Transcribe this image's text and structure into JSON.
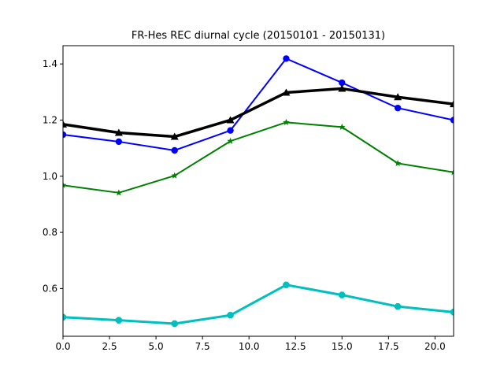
{
  "chart_data": {
    "type": "line",
    "title": "FR-Hes REC diurnal cycle (20150101 - 20150131)",
    "xlabel": "",
    "ylabel": "",
    "xlim": [
      0,
      21
    ],
    "ylim": [
      0.43,
      1.465
    ],
    "x_ticks": [
      0.0,
      2.5,
      5.0,
      7.5,
      10.0,
      12.5,
      15.0,
      17.5,
      20.0
    ],
    "x_tick_labels": [
      "0.0",
      "2.5",
      "5.0",
      "7.5",
      "10.0",
      "12.5",
      "15.0",
      "17.5",
      "20.0"
    ],
    "y_ticks": [
      0.6,
      0.8,
      1.0,
      1.2,
      1.4
    ],
    "y_tick_labels": [
      "0.6",
      "0.8",
      "1.0",
      "1.2",
      "1.4"
    ],
    "grid": false,
    "x": [
      0,
      3,
      6,
      9,
      12,
      15,
      18,
      21
    ],
    "series": [
      {
        "color": "#0000ff",
        "marker": "circle",
        "width": 2,
        "values": [
          1.148,
          1.123,
          1.092,
          1.163,
          1.419,
          1.333,
          1.243,
          1.2
        ]
      },
      {
        "color": "#000000",
        "marker": "triangle",
        "width": 3.5,
        "values": [
          1.185,
          1.155,
          1.141,
          1.2,
          1.298,
          1.312,
          1.282,
          1.257
        ]
      },
      {
        "color": "#008000",
        "marker": "star",
        "width": 2,
        "values": [
          0.968,
          0.941,
          1.002,
          1.125,
          1.192,
          1.175,
          1.046,
          1.014
        ]
      },
      {
        "color": "#00bfbf",
        "marker": "octagon",
        "width": 3,
        "values": [
          0.498,
          0.487,
          0.475,
          0.505,
          0.613,
          0.577,
          0.536,
          0.516
        ]
      }
    ]
  }
}
